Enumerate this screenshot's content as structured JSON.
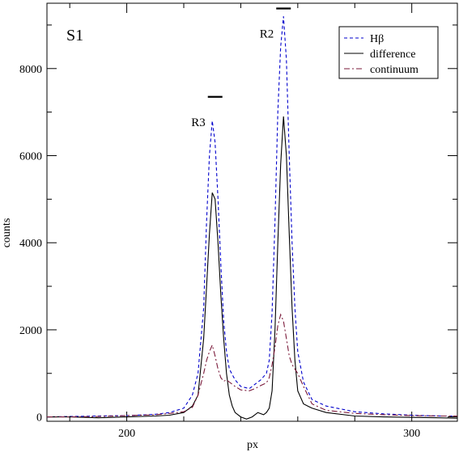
{
  "chart_data": {
    "type": "line",
    "title": "",
    "panel_label": "S1",
    "xlabel": "px",
    "ylabel": "counts",
    "xlim": [
      172,
      316
    ],
    "ylim": [
      -100,
      9500
    ],
    "x_ticks": [
      200,
      300
    ],
    "x_tick_labels": [
      "200",
      "300"
    ],
    "y_ticks": [
      0,
      2000,
      4000,
      6000,
      8000
    ],
    "y_tick_labels": [
      "0",
      "2000",
      "4000",
      "6000",
      "8000"
    ],
    "grid": false,
    "legend_position": "top-right",
    "annotations": [
      {
        "label": "R3",
        "x": 231,
        "y": 7350
      },
      {
        "label": "R2",
        "x": 255,
        "y": 9380
      }
    ],
    "series": [
      {
        "name": "Hβ",
        "color": "#0000cc",
        "dash": "dashed",
        "x": [
          172,
          180,
          190,
          200,
          210,
          215,
          220,
          223,
          225,
          227,
          228,
          229,
          230,
          231,
          232,
          233,
          234,
          235,
          236,
          238,
          240,
          243,
          245,
          247,
          249,
          250,
          251,
          252,
          253,
          254,
          255,
          256,
          257,
          258,
          259,
          260,
          262,
          265,
          270,
          280,
          290,
          300,
          310,
          316
        ],
        "values": [
          0,
          10,
          20,
          30,
          60,
          100,
          200,
          500,
          1000,
          2500,
          4500,
          6000,
          6800,
          6300,
          5000,
          3500,
          2200,
          1500,
          1100,
          850,
          700,
          650,
          750,
          850,
          1000,
          1300,
          2400,
          4500,
          7000,
          8500,
          9200,
          8200,
          6000,
          4000,
          2500,
          1500,
          800,
          400,
          250,
          120,
          70,
          40,
          20,
          20
        ]
      },
      {
        "name": "difference",
        "color": "#000000",
        "dash": "solid",
        "x": [
          172,
          180,
          190,
          200,
          210,
          215,
          220,
          223,
          225,
          227,
          228,
          229,
          230,
          231,
          232,
          233,
          234,
          235,
          236,
          237,
          238,
          240,
          242,
          244,
          246,
          248,
          249,
          250,
          251,
          252,
          253,
          254,
          255,
          256,
          257,
          258,
          259,
          260,
          262,
          265,
          270,
          280,
          290,
          300,
          310,
          316
        ],
        "values": [
          0,
          0,
          -20,
          0,
          20,
          40,
          100,
          250,
          500,
          1800,
          3000,
          4200,
          5150,
          5000,
          4000,
          2800,
          1800,
          1000,
          500,
          250,
          100,
          0,
          -50,
          0,
          100,
          50,
          100,
          200,
          600,
          2000,
          4000,
          5800,
          6900,
          6000,
          4200,
          2500,
          1300,
          600,
          300,
          200,
          100,
          20,
          0,
          -10,
          -20,
          -30
        ]
      },
      {
        "name": "continuum",
        "color": "#7a1a3a",
        "dash": "dashdot",
        "x": [
          172,
          180,
          190,
          200,
          210,
          215,
          220,
          223,
          225,
          227,
          228,
          229,
          230,
          231,
          232,
          233,
          234,
          235,
          236,
          238,
          240,
          243,
          245,
          247,
          249,
          250,
          251,
          252,
          253,
          254,
          255,
          256,
          257,
          258,
          259,
          260,
          262,
          265,
          270,
          280,
          290,
          300,
          310,
          316
        ],
        "values": [
          0,
          0,
          10,
          30,
          50,
          80,
          120,
          220,
          500,
          1000,
          1300,
          1500,
          1650,
          1400,
          1100,
          900,
          820,
          850,
          800,
          700,
          620,
          600,
          650,
          720,
          780,
          900,
          1200,
          1600,
          2100,
          2350,
          2200,
          1800,
          1400,
          1200,
          1100,
          1000,
          700,
          300,
          150,
          80,
          50,
          30,
          20,
          20
        ]
      }
    ]
  }
}
